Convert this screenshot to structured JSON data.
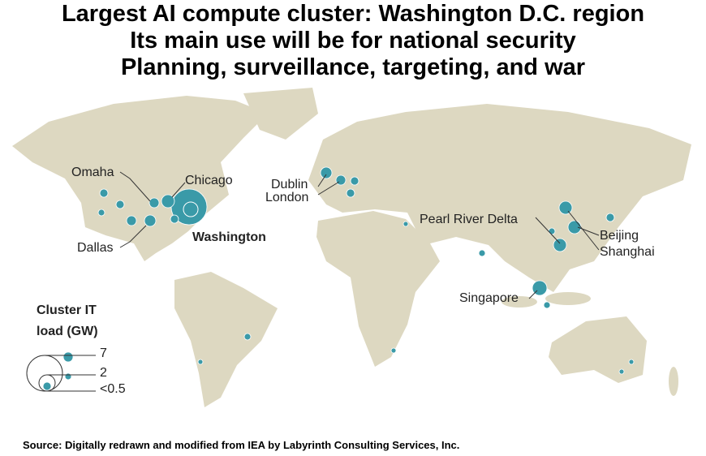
{
  "header": {
    "lines": [
      "Largest AI compute cluster: Washington D.C. region",
      "Its main use will be for national security",
      "Planning, surveillance, targeting, and war"
    ]
  },
  "labels": [
    "Omaha",
    "Chicago",
    "Dublin",
    "London",
    "Washington",
    "Dallas",
    "Pearl River Delta",
    "Beijing",
    "Shanghai",
    "Singapore"
  ],
  "legend": {
    "title": [
      "Cluster IT",
      "load (GW)"
    ],
    "items": [
      "7",
      "2",
      "<0.5"
    ]
  },
  "footer": {
    "source": "Source: Digitally redrawn and modified from IEA by Labyrinth Consulting Services, Inc."
  }
}
